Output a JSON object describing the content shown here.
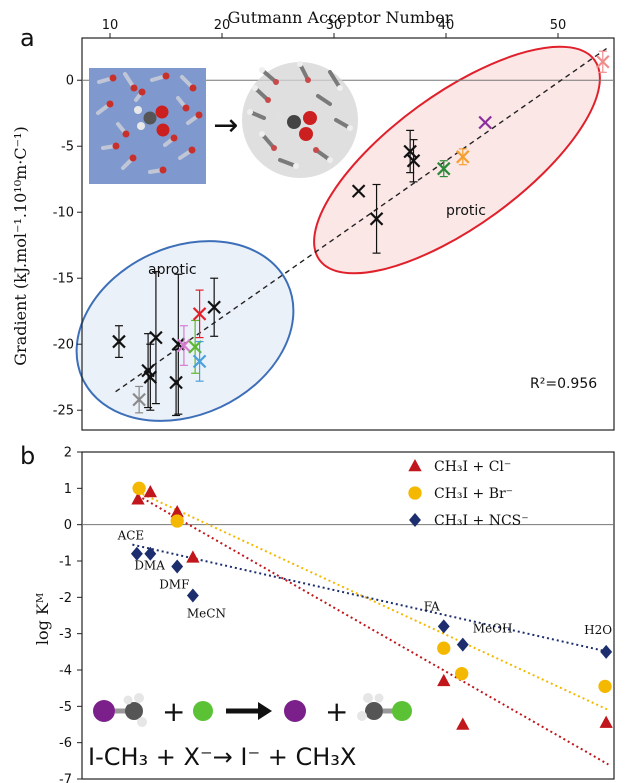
{
  "figure": {
    "panel_a_label": "a",
    "panel_b_label": "b",
    "top_axis_title": "Gutmann Acceptor Number",
    "panel_a_ylabel": "Gradient (kJ.mol⁻¹.10¹⁰m·C⁻¹)",
    "panel_b_ylabel": "log Kᴹ",
    "r2": "R²=0.956",
    "protic_label": "protic",
    "aprotic_label": "aprotic",
    "arrow_glyph": "→",
    "equation": "I-CH₃ + X⁻→ I⁻ + CH₃X"
  },
  "chart_data": [
    {
      "type": "scatter",
      "panel": "a",
      "xlabel": "Gutmann Acceptor Number",
      "ylabel": "Gradient (kJ.mol⁻¹.10¹⁰m·C⁻¹)",
      "xlim": [
        7.5,
        55
      ],
      "ylim": [
        -26.5,
        3.2
      ],
      "xticks": [
        10,
        20,
        30,
        40,
        50
      ],
      "yticks": [
        0,
        -5,
        -10,
        -15,
        -20,
        -25
      ],
      "fit_line": {
        "x": [
          10.5,
          54.5
        ],
        "y": [
          -23.6,
          2.5
        ]
      },
      "annotation": "R²=0.956",
      "groups": [
        {
          "label": "protic",
          "color": "#e0202a"
        },
        {
          "label": "aprotic",
          "color": "#3d6fb8"
        }
      ],
      "points": [
        {
          "x": 10.8,
          "y": -19.8,
          "yerr": 1.2,
          "color": "#111111"
        },
        {
          "x": 12.6,
          "y": -24.2,
          "yerr": 1.0,
          "color": "#8a8a8a"
        },
        {
          "x": 13.4,
          "y": -22.0,
          "yerr": 2.8,
          "color": "#111111"
        },
        {
          "x": 13.6,
          "y": -22.5,
          "yerr": 2.5,
          "color": "#111111"
        },
        {
          "x": 14.1,
          "y": -19.5,
          "yerr": 5.0,
          "color": "#111111"
        },
        {
          "x": 15.9,
          "y": -22.9,
          "yerr": 2.5,
          "color": "#111111"
        },
        {
          "x": 16.1,
          "y": -20.0,
          "yerr": 5.3,
          "color": "#111111"
        },
        {
          "x": 16.6,
          "y": -20.1,
          "yerr": 1.5,
          "color": "#d87bd0"
        },
        {
          "x": 17.6,
          "y": -20.2,
          "yerr": 2.0,
          "color": "#5cb830"
        },
        {
          "x": 18.0,
          "y": -17.7,
          "yerr": 1.8,
          "color": "#e0202a"
        },
        {
          "x": 18.0,
          "y": -21.3,
          "yerr": 1.5,
          "color": "#4aa0dc"
        },
        {
          "x": 19.3,
          "y": -17.2,
          "yerr": 2.2,
          "color": "#111111"
        },
        {
          "x": 32.2,
          "y": -8.4,
          "yerr": 0.0,
          "color": "#111111"
        },
        {
          "x": 33.8,
          "y": -10.5,
          "yerr": 2.6,
          "color": "#111111"
        },
        {
          "x": 36.8,
          "y": -5.4,
          "yerr": 1.6,
          "color": "#111111"
        },
        {
          "x": 37.1,
          "y": -6.1,
          "yerr": 1.6,
          "color": "#111111"
        },
        {
          "x": 39.8,
          "y": -6.7,
          "yerr": 0.6,
          "color": "#2a8a3a"
        },
        {
          "x": 41.5,
          "y": -5.8,
          "yerr": 0.6,
          "color": "#f4a030"
        },
        {
          "x": 43.5,
          "y": -3.2,
          "yerr": 0.0,
          "color": "#8b2c9c"
        },
        {
          "x": 54.0,
          "y": 1.4,
          "yerr": 0.8,
          "color": "#f08c8c"
        }
      ]
    },
    {
      "type": "scatter",
      "panel": "b",
      "ylabel": "log Kᴹ",
      "xlim": [
        7.5,
        55
      ],
      "ylim": [
        -7,
        2
      ],
      "yticks": [
        2,
        1,
        0,
        -1,
        -2,
        -3,
        -4,
        -5,
        -6,
        -7
      ],
      "series": [
        {
          "name": "CH₃I + Cl⁻",
          "marker": "triangle",
          "color": "#c0161c",
          "x": [
            12.5,
            13.6,
            16.0,
            17.4,
            39.8,
            41.5,
            54.3
          ],
          "y": [
            0.7,
            0.9,
            0.35,
            -0.9,
            -4.3,
            -5.5,
            -5.45
          ],
          "trend": {
            "x": [
              12.5,
              54.5
            ],
            "y": [
              0.8,
              -6.6
            ]
          }
        },
        {
          "name": "CH₃I + Br⁻",
          "marker": "circle",
          "color": "#f5b800",
          "x": [
            12.6,
            16.0,
            39.8,
            41.4,
            54.2
          ],
          "y": [
            1.0,
            0.1,
            -3.4,
            -4.1,
            -4.45
          ],
          "trend": {
            "x": [
              12.5,
              54.5
            ],
            "y": [
              0.9,
              -5.1
            ]
          }
        },
        {
          "name": "CH₃I + NCS⁻",
          "marker": "diamond",
          "color": "#1c2e6e",
          "x": [
            12.4,
            13.6,
            16.0,
            17.4,
            39.8,
            41.5,
            54.3
          ],
          "y": [
            -0.8,
            -0.8,
            -1.15,
            -1.95,
            -2.8,
            -3.3,
            -3.5
          ],
          "trend": {
            "x": [
              12.0,
              54.5
            ],
            "y": [
              -0.55,
              -3.5
            ]
          }
        }
      ],
      "point_labels": [
        {
          "text": "ACE",
          "x": 12.4,
          "y": -0.8
        },
        {
          "text": "DMA",
          "x": 13.6,
          "y": -0.8
        },
        {
          "text": "DMF",
          "x": 16.0,
          "y": -1.15
        },
        {
          "text": "MeCN",
          "x": 17.4,
          "y": -1.95
        },
        {
          "text": "FA",
          "x": 39.8,
          "y": -2.8
        },
        {
          "text": "MeOH",
          "x": 41.5,
          "y": -3.3
        },
        {
          "text": "H2O",
          "x": 54.3,
          "y": -3.5
        }
      ]
    }
  ]
}
